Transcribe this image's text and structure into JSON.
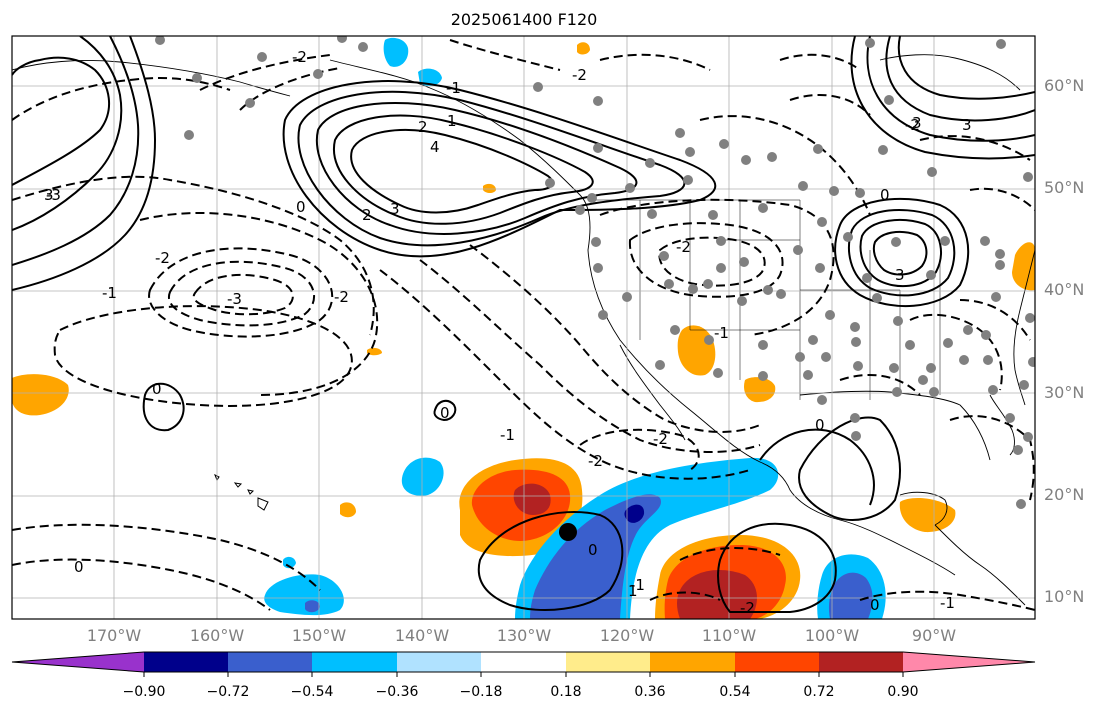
{
  "title": "2025061400 F120",
  "map": {
    "latitude_labels": [
      "60°N",
      "50°N",
      "40°N",
      "30°N",
      "20°N",
      "10°N"
    ],
    "longitude_labels": [
      "170°W",
      "160°W",
      "150°W",
      "140°W",
      "130°W",
      "120°W",
      "110°W",
      "100°W",
      "90°W"
    ],
    "contour_labels": [
      "-2",
      "-2",
      "-2",
      "-2",
      "-3",
      "-3",
      "-1",
      "-1",
      "-1",
      "-1",
      "-2",
      "-2",
      "-1",
      "0",
      "0",
      "0",
      "0",
      "0",
      "0",
      "1",
      "2",
      "2",
      "3",
      "3",
      "3",
      "4",
      "-2",
      "-1",
      "-3",
      "-2",
      "3",
      "3",
      "0",
      "-2",
      "0",
      "1"
    ],
    "station_marker_color": "#808080",
    "storm_marker_color": "#000000"
  },
  "colorbar": {
    "ticks": [
      "−0.90",
      "−0.72",
      "−0.54",
      "−0.36",
      "−0.18",
      "0.18",
      "0.36",
      "0.54",
      "0.72",
      "0.90"
    ],
    "colors": [
      "#9932cc",
      "#00008b",
      "#3a5fcd",
      "#00bfff",
      "#b0e2ff",
      "#ffffff",
      "#ffec8b",
      "#ffa500",
      "#ff4500",
      "#b22222",
      "#ff88aa"
    ]
  }
}
